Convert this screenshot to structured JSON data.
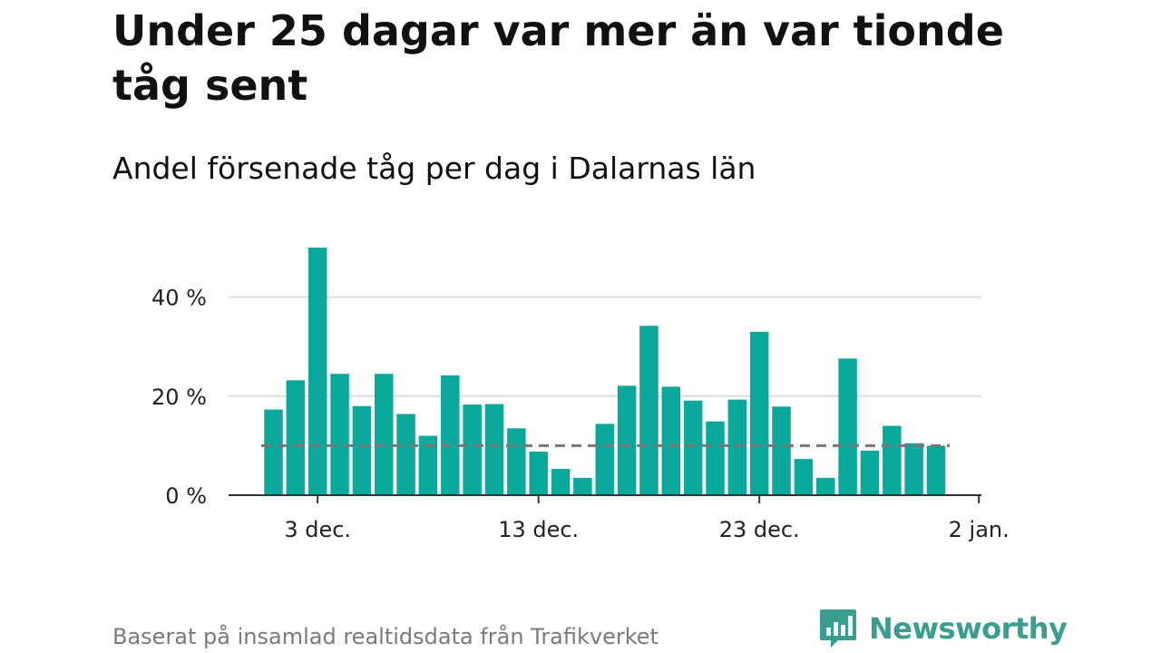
{
  "header": {
    "title": "Under 25 dagar var mer än var tionde tåg sent",
    "subtitle": "Andel försenade tåg per dag i Dalarnas län"
  },
  "footer": {
    "source": "Baserat på insamlad realtidsdata från Trafikverket",
    "brand": "Newsworthy",
    "brand_icon": "bar-chart-speech-bubble-icon"
  },
  "colors": {
    "bar": "#0aa89b",
    "reference_line": "#777777",
    "grid": "#dddddd",
    "axis": "#333333",
    "brand": "#3a9e8f"
  },
  "chart_data": {
    "type": "bar",
    "categories": [
      "1 dec.",
      "2 dec.",
      "3 dec.",
      "4 dec.",
      "5 dec.",
      "6 dec.",
      "7 dec.",
      "8 dec.",
      "9 dec.",
      "10 dec.",
      "11 dec.",
      "12 dec.",
      "13 dec.",
      "14 dec.",
      "15 dec.",
      "16 dec.",
      "17 dec.",
      "18 dec.",
      "19 dec.",
      "20 dec.",
      "21 dec.",
      "22 dec.",
      "23 dec.",
      "24 dec.",
      "25 dec.",
      "26 dec.",
      "27 dec.",
      "28 dec.",
      "29 dec.",
      "30 dec.",
      "31 dec."
    ],
    "values": [
      17.3,
      23.2,
      50.0,
      24.5,
      18.0,
      24.5,
      16.4,
      12.0,
      24.2,
      18.3,
      18.4,
      13.5,
      8.8,
      5.3,
      3.5,
      14.4,
      22.1,
      34.2,
      21.9,
      19.1,
      14.9,
      19.3,
      33.0,
      17.9,
      7.3,
      3.5,
      27.6,
      9.0,
      14.0,
      10.5,
      10.0
    ],
    "reference_value": 10,
    "y_ticks": [
      0,
      20,
      40
    ],
    "y_tick_labels": [
      "0 %",
      "20 %",
      "40 %"
    ],
    "ylim": [
      0,
      50
    ],
    "x_tick_labels": [
      {
        "index": 2,
        "label": "3 dec."
      },
      {
        "index": 12,
        "label": "13 dec."
      },
      {
        "index": 22,
        "label": "23 dec."
      },
      {
        "index": 32,
        "label": "2 jan."
      }
    ],
    "grid": true,
    "legend": false
  }
}
